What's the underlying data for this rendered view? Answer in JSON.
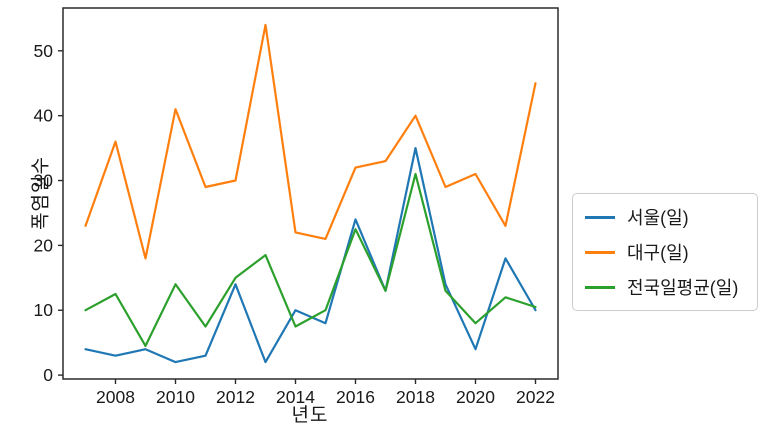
{
  "figure": {
    "background": "#ffffff",
    "frame_color": "#2b2b2b",
    "tick_color": "#2b2b2b",
    "text_color": "#1a1a1a"
  },
  "chart_data": {
    "type": "line",
    "title": "",
    "xlabel": "년도",
    "ylabel": "폭염일수",
    "x": [
      2007,
      2008,
      2009,
      2010,
      2011,
      2012,
      2013,
      2014,
      2015,
      2016,
      2017,
      2018,
      2019,
      2020,
      2021,
      2022
    ],
    "series": [
      {
        "name": "서울(일)",
        "color": "#1f77b4",
        "values": [
          4,
          3,
          4,
          2,
          3,
          14,
          2,
          10,
          8,
          24,
          13,
          35,
          14,
          4,
          18,
          10
        ]
      },
      {
        "name": "대구(일)",
        "color": "#ff7f0e",
        "values": [
          23,
          36,
          18,
          41,
          29,
          30,
          54,
          22,
          21,
          32,
          33,
          40,
          29,
          31,
          23,
          45
        ]
      },
      {
        "name": "전국일평균(일)",
        "color": "#2ca02c",
        "values": [
          10,
          12.5,
          4.5,
          14,
          7.5,
          15,
          18.5,
          7.5,
          10,
          22.5,
          13,
          31,
          13,
          8,
          12,
          10.5
        ]
      }
    ],
    "xlim": [
      2006.25,
      2022.75
    ],
    "ylim": [
      -0.6,
      56.6
    ],
    "xticks": [
      2008,
      2010,
      2012,
      2014,
      2016,
      2018,
      2020,
      2022
    ],
    "yticks": [
      0,
      10,
      20,
      30,
      40,
      50
    ],
    "grid": false,
    "legend_position": "right-outside"
  }
}
